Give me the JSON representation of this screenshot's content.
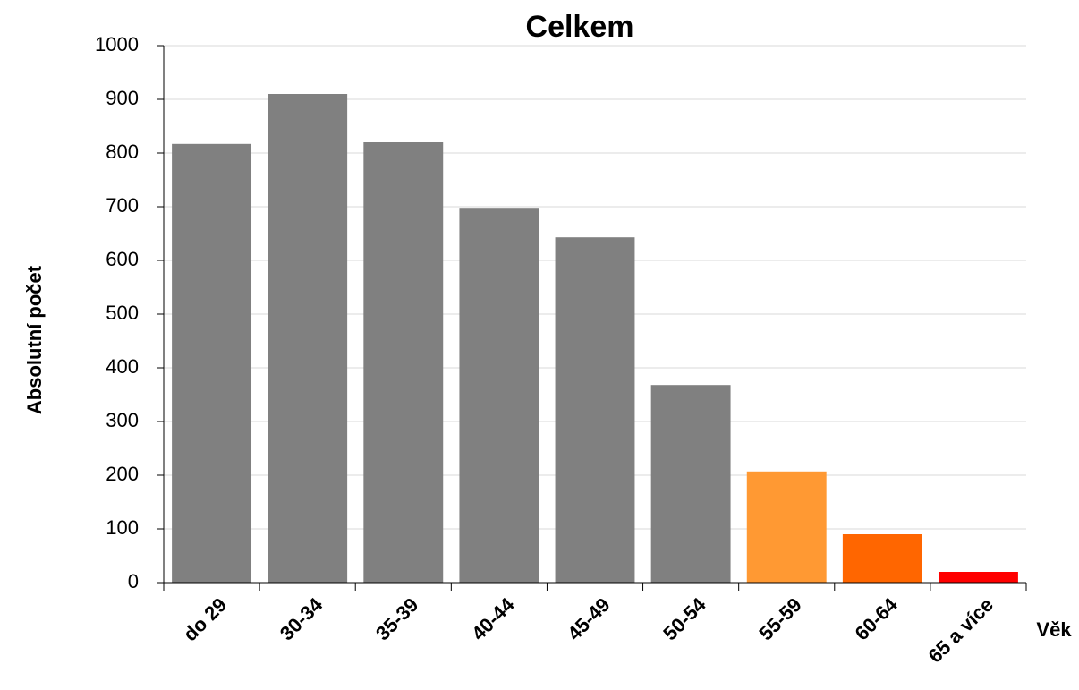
{
  "chart_data": {
    "type": "bar",
    "title": "Celkem",
    "x_label": "Věk",
    "y_label": "Absolutní počet",
    "categories": [
      "do 29",
      "30-34",
      "35-39",
      "40-44",
      "45-49",
      "50-54",
      "55-59",
      "60-64",
      "65 a více"
    ],
    "values": [
      817,
      910,
      820,
      698,
      643,
      368,
      207,
      90,
      20
    ],
    "colors": [
      "#808080",
      "#808080",
      "#808080",
      "#808080",
      "#808080",
      "#808080",
      "#ff9933",
      "#ff6600",
      "#ff0000"
    ],
    "ylim": [
      0,
      1000
    ],
    "yticks": [
      0,
      100,
      200,
      300,
      400,
      500,
      600,
      700,
      800,
      900,
      1000
    ],
    "grid": true
  }
}
